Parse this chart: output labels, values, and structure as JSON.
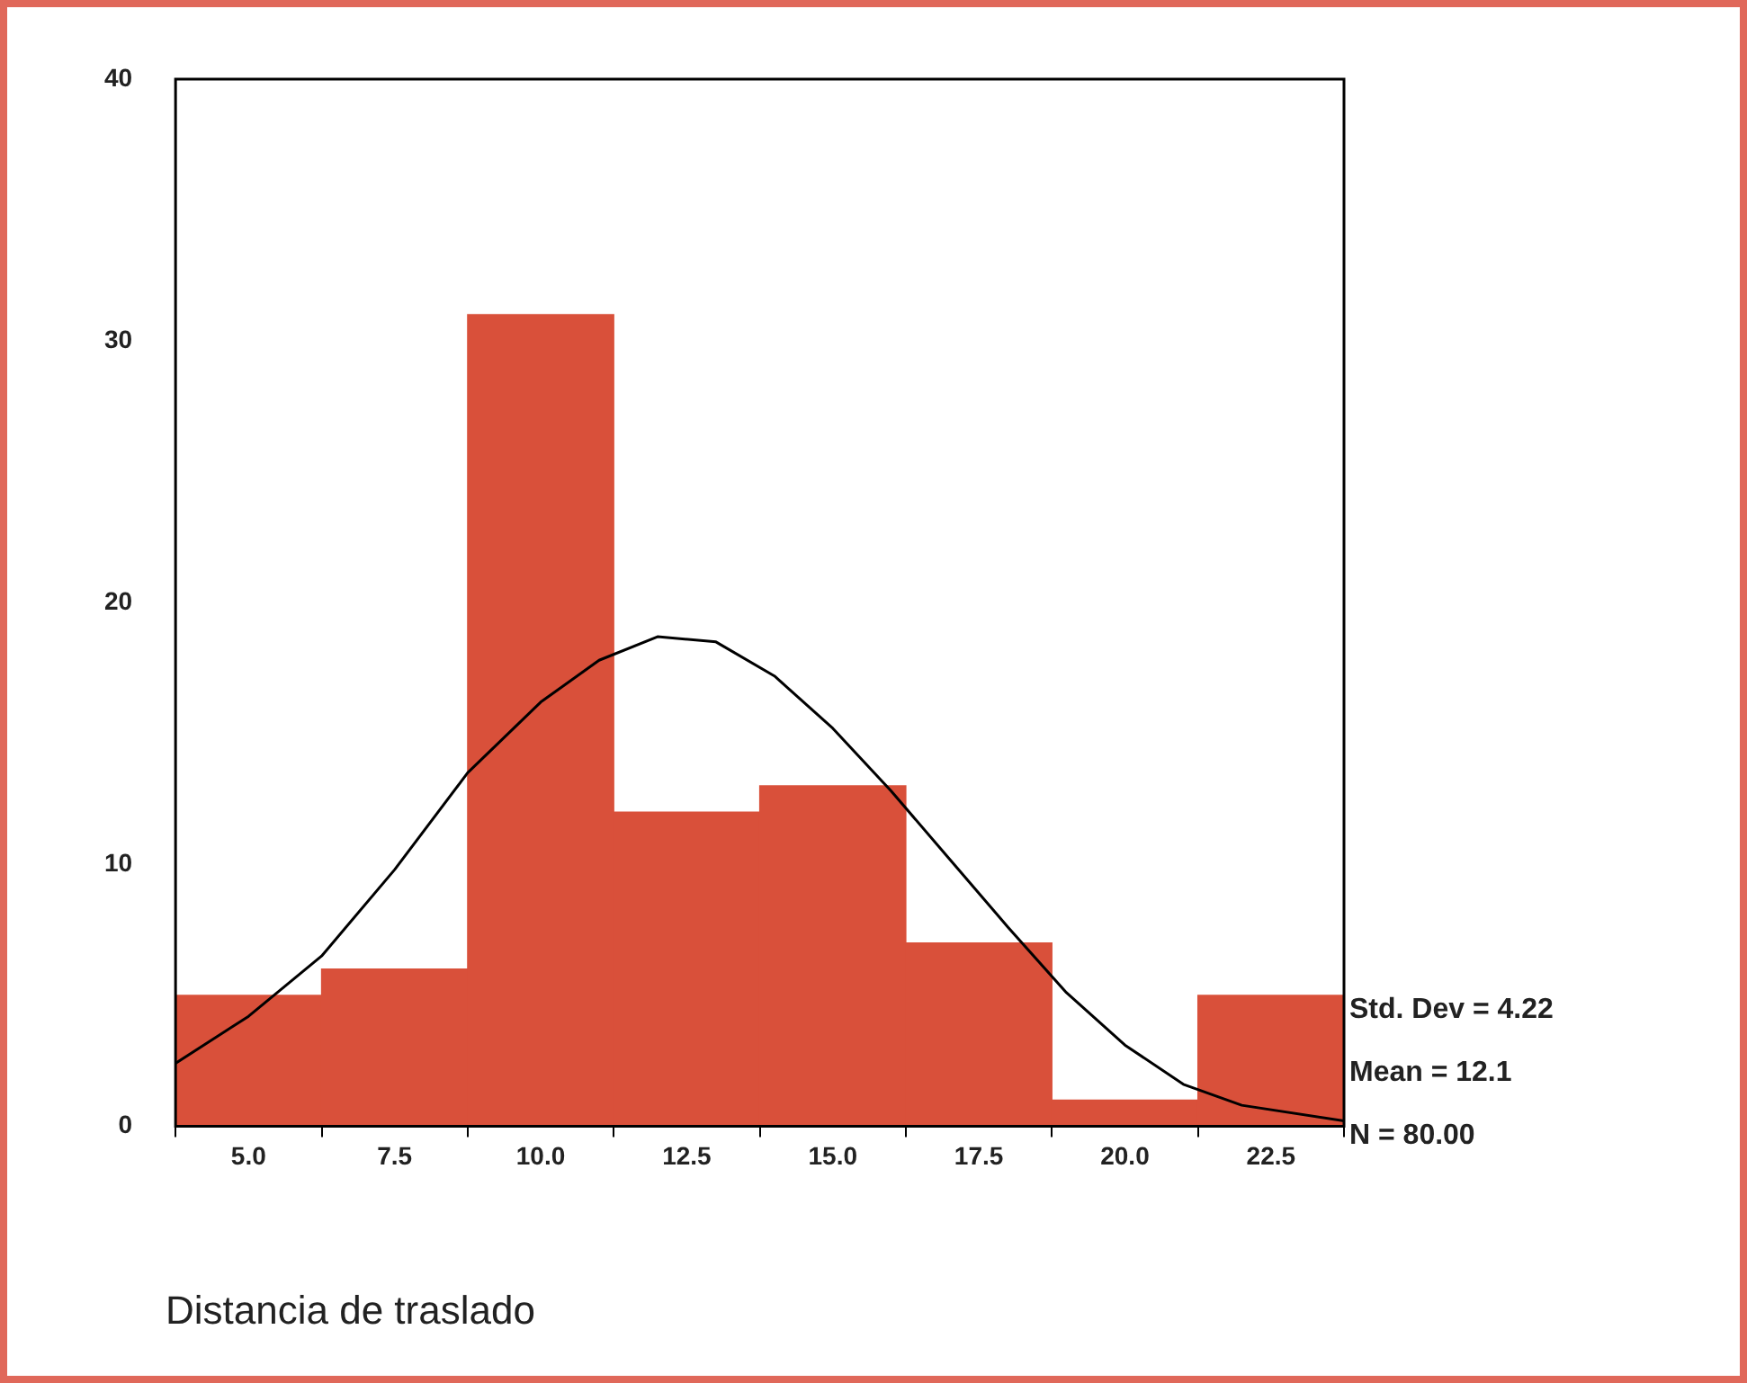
{
  "chart_data": {
    "type": "histogram",
    "xlabel": "Distancia de traslado",
    "xlim": [
      3.75,
      23.75
    ],
    "ylim": [
      0,
      40
    ],
    "xticks": [
      {
        "value": 5,
        "label": "5.0"
      },
      {
        "value": 7.5,
        "label": "7.5"
      },
      {
        "value": 10,
        "label": "10.0"
      },
      {
        "value": 12.5,
        "label": "12.5"
      },
      {
        "value": 15,
        "label": "15.0"
      },
      {
        "value": 17.5,
        "label": "17.5"
      },
      {
        "value": 20,
        "label": "20.0"
      },
      {
        "value": 22.5,
        "label": "22.5"
      }
    ],
    "yticks": [
      0,
      10,
      20,
      30,
      40
    ],
    "grid": false,
    "series": [
      {
        "color": "#d9503a",
        "bins": [
          3.75,
          6.25,
          8.75,
          11.25,
          13.75,
          16.25,
          18.75,
          21.25,
          23.75
        ],
        "values": [
          5,
          6,
          31,
          12,
          13,
          7,
          1,
          5
        ]
      },
      {
        "type": "line",
        "color": "#000000",
        "marker": "none",
        "x": [
          3.75,
          5,
          6.25,
          7.5,
          8.75,
          10,
          11,
          12,
          13,
          14,
          15,
          16,
          17,
          18,
          19,
          20,
          21,
          22,
          23.75
        ],
        "values": [
          2.4,
          4.2,
          6.5,
          9.8,
          13.5,
          16.2,
          17.8,
          18.7,
          18.5,
          17.2,
          15.2,
          12.8,
          10.2,
          7.6,
          5.1,
          3.1,
          1.6,
          0.8,
          0.2
        ]
      }
    ],
    "annotations": [
      "Std. Dev = 4.22",
      "Mean = 12.1",
      "N = 80.00"
    ]
  }
}
